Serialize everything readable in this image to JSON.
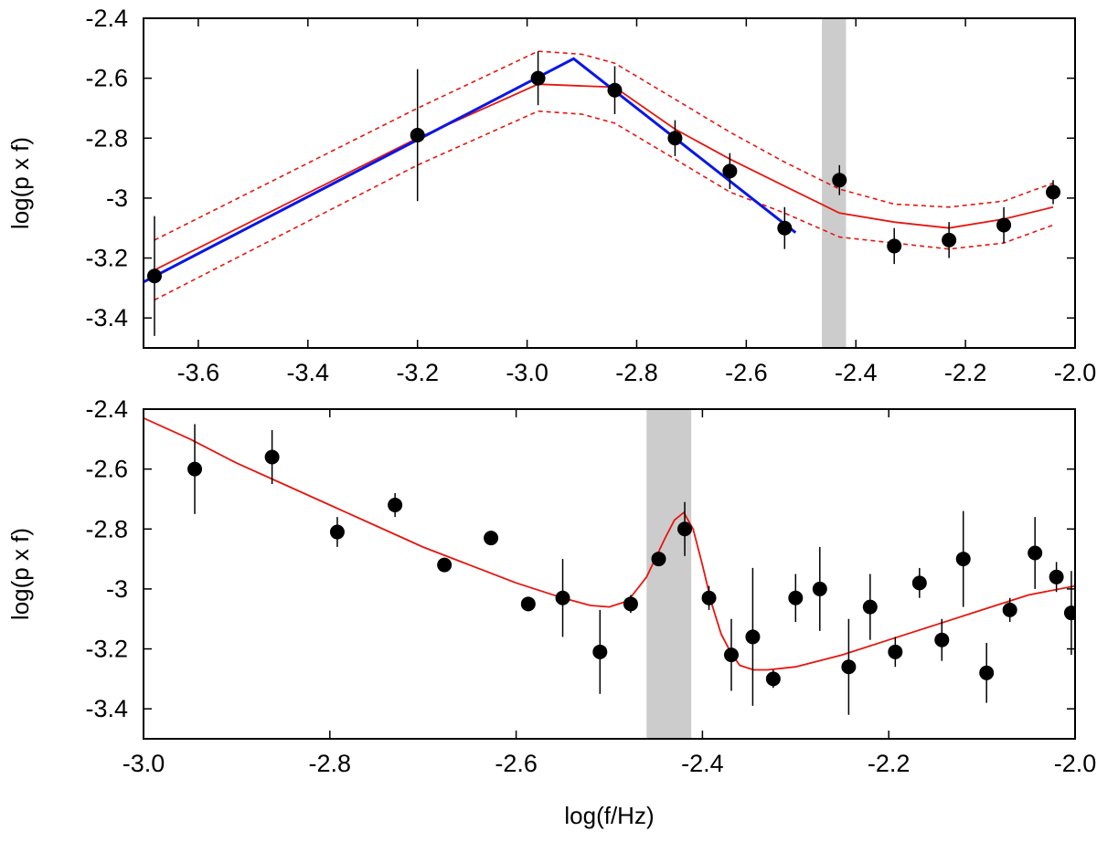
{
  "chart_data": [
    {
      "type": "scatter",
      "title": "",
      "xlabel": "",
      "ylabel": "log(p x f)",
      "xlim": [
        -3.7,
        -2.0
      ],
      "ylim": [
        -3.5,
        -2.4
      ],
      "xticks": [
        -3.6,
        -3.4,
        -3.2,
        -3.0,
        -2.8,
        -2.6,
        -2.4,
        -2.2,
        -2.0
      ],
      "xtick_labels": [
        "-3.6",
        "-3.4",
        "-3.2",
        "-3.0",
        "-2.8",
        "-2.6",
        "-2.4",
        "-2.2",
        "-2.0"
      ],
      "yticks": [
        -3.4,
        -3.2,
        -3.0,
        -2.8,
        -2.6,
        -2.4
      ],
      "ytick_labels": [
        "-3.4",
        "-3.2",
        "-3",
        "-2.8",
        "-2.6",
        "-2.4"
      ],
      "grid": false,
      "shaded_band": {
        "x_from": -2.462,
        "x_to": -2.418,
        "color": "#cccccc"
      },
      "colors": {
        "points": "#000000",
        "model": "#e8150e",
        "broken_power_law": "#0a16e8",
        "band": "#cccccc"
      },
      "points": [
        {
          "x": -3.68,
          "y": -3.26,
          "err": 0.2
        },
        {
          "x": -3.2,
          "y": -2.79,
          "err": 0.22
        },
        {
          "x": -2.98,
          "y": -2.6,
          "err": 0.09
        },
        {
          "x": -2.84,
          "y": -2.64,
          "err": 0.08
        },
        {
          "x": -2.73,
          "y": -2.8,
          "err": 0.06
        },
        {
          "x": -2.63,
          "y": -2.91,
          "err": 0.06
        },
        {
          "x": -2.53,
          "y": -3.1,
          "err": 0.07
        },
        {
          "x": -2.43,
          "y": -2.94,
          "err": 0.05
        },
        {
          "x": -2.33,
          "y": -3.16,
          "err": 0.06
        },
        {
          "x": -2.23,
          "y": -3.14,
          "err": 0.06
        },
        {
          "x": -2.13,
          "y": -3.09,
          "err": 0.06
        },
        {
          "x": -2.04,
          "y": -2.98,
          "err": 0.04
        }
      ],
      "model_line": {
        "x": [
          -3.68,
          -3.2,
          -2.98,
          -2.84,
          -2.73,
          -2.63,
          -2.53,
          -2.43,
          -2.33,
          -2.23,
          -2.13,
          -2.04
        ],
        "y": [
          -3.24,
          -2.8,
          -2.62,
          -2.63,
          -2.77,
          -2.87,
          -2.96,
          -3.05,
          -3.08,
          -3.1,
          -3.07,
          -3.03
        ]
      },
      "model_upper": {
        "x": [
          -3.68,
          -3.2,
          -2.98,
          -2.9,
          -2.84,
          -2.73,
          -2.63,
          -2.53,
          -2.43,
          -2.33,
          -2.23,
          -2.13,
          -2.04
        ],
        "y": [
          -3.14,
          -2.7,
          -2.51,
          -2.52,
          -2.55,
          -2.67,
          -2.78,
          -2.88,
          -2.97,
          -3.02,
          -3.03,
          -3.01,
          -2.95
        ]
      },
      "model_lower": {
        "x": [
          -3.68,
          -3.2,
          -2.98,
          -2.9,
          -2.84,
          -2.73,
          -2.63,
          -2.53,
          -2.43,
          -2.33,
          -2.23,
          -2.13,
          -2.04
        ],
        "y": [
          -3.34,
          -2.89,
          -2.71,
          -2.72,
          -2.75,
          -2.87,
          -2.98,
          -3.05,
          -3.13,
          -3.15,
          -3.17,
          -3.15,
          -3.09
        ]
      },
      "broken_power_law": {
        "x": [
          -3.7,
          -2.915,
          -2.51
        ],
        "y": [
          -3.28,
          -2.535,
          -3.115
        ]
      }
    },
    {
      "type": "scatter",
      "title": "",
      "xlabel": "log(f/Hz)",
      "ylabel": "log(p x f)",
      "xlim": [
        -3.0,
        -2.0
      ],
      "ylim": [
        -3.5,
        -2.4
      ],
      "xticks": [
        -3.0,
        -2.8,
        -2.6,
        -2.4,
        -2.2,
        -2.0
      ],
      "xtick_labels": [
        "-3.0",
        "-2.8",
        "-2.6",
        "-2.4",
        "-2.2",
        "-2.0"
      ],
      "yticks": [
        -3.4,
        -3.2,
        -3.0,
        -2.8,
        -2.6,
        -2.4
      ],
      "ytick_labels": [
        "-3.4",
        "-3.2",
        "-3",
        "-2.8",
        "-2.6",
        "-2.4"
      ],
      "grid": false,
      "shaded_band": {
        "x_from": -2.46,
        "x_to": -2.412,
        "color": "#cccccc"
      },
      "colors": {
        "points": "#000000",
        "model": "#e8150e",
        "band": "#cccccc"
      },
      "points": [
        {
          "x": -2.945,
          "y": -2.6,
          "err": 0.15
        },
        {
          "x": -2.862,
          "y": -2.56,
          "err": 0.09
        },
        {
          "x": -2.792,
          "y": -2.81,
          "err": 0.05
        },
        {
          "x": -2.73,
          "y": -2.72,
          "err": 0.04
        },
        {
          "x": -2.677,
          "y": -2.92,
          "err": 0.02
        },
        {
          "x": -2.627,
          "y": -2.83,
          "err": 0.01
        },
        {
          "x": -2.587,
          "y": -3.05,
          "err": 0.01
        },
        {
          "x": -2.55,
          "y": -3.03,
          "err": 0.13
        },
        {
          "x": -2.51,
          "y": -3.21,
          "err": 0.14
        },
        {
          "x": -2.477,
          "y": -3.05,
          "err": 0.03
        },
        {
          "x": -2.447,
          "y": -2.9,
          "err": 0.02
        },
        {
          "x": -2.419,
          "y": -2.8,
          "err": 0.09
        },
        {
          "x": -2.393,
          "y": -3.03,
          "err": 0.04
        },
        {
          "x": -2.369,
          "y": -3.22,
          "err": 0.12
        },
        {
          "x": -2.346,
          "y": -3.16,
          "err": 0.23
        },
        {
          "x": -2.324,
          "y": -3.3,
          "err": 0.03
        },
        {
          "x": -2.3,
          "y": -3.03,
          "err": 0.08
        },
        {
          "x": -2.274,
          "y": -3.0,
          "err": 0.14
        },
        {
          "x": -2.243,
          "y": -3.26,
          "err": 0.16
        },
        {
          "x": -2.22,
          "y": -3.06,
          "err": 0.11
        },
        {
          "x": -2.193,
          "y": -3.21,
          "err": 0.05
        },
        {
          "x": -2.167,
          "y": -2.98,
          "err": 0.05
        },
        {
          "x": -2.143,
          "y": -3.17,
          "err": 0.07
        },
        {
          "x": -2.12,
          "y": -2.9,
          "err": 0.16
        },
        {
          "x": -2.095,
          "y": -3.28,
          "err": 0.1
        },
        {
          "x": -2.07,
          "y": -3.07,
          "err": 0.04
        },
        {
          "x": -2.043,
          "y": -2.88,
          "err": 0.12
        },
        {
          "x": -2.02,
          "y": -2.96,
          "err": 0.05
        },
        {
          "x": -2.004,
          "y": -3.08,
          "err": 0.14
        }
      ],
      "model_line": {
        "x": [
          -3.0,
          -2.95,
          -2.9,
          -2.85,
          -2.8,
          -2.75,
          -2.7,
          -2.65,
          -2.6,
          -2.55,
          -2.52,
          -2.5,
          -2.48,
          -2.46,
          -2.44,
          -2.43,
          -2.42,
          -2.41,
          -2.4,
          -2.39,
          -2.38,
          -2.37,
          -2.36,
          -2.345,
          -2.33,
          -2.3,
          -2.25,
          -2.2,
          -2.15,
          -2.1,
          -2.05,
          -2.0
        ],
        "y": [
          -2.43,
          -2.5,
          -2.58,
          -2.65,
          -2.72,
          -2.79,
          -2.86,
          -2.92,
          -2.98,
          -3.03,
          -3.055,
          -3.06,
          -3.04,
          -2.96,
          -2.83,
          -2.77,
          -2.745,
          -2.8,
          -2.92,
          -3.05,
          -3.15,
          -3.21,
          -3.255,
          -3.27,
          -3.27,
          -3.26,
          -3.22,
          -3.17,
          -3.12,
          -3.07,
          -3.02,
          -2.99
        ]
      }
    }
  ]
}
